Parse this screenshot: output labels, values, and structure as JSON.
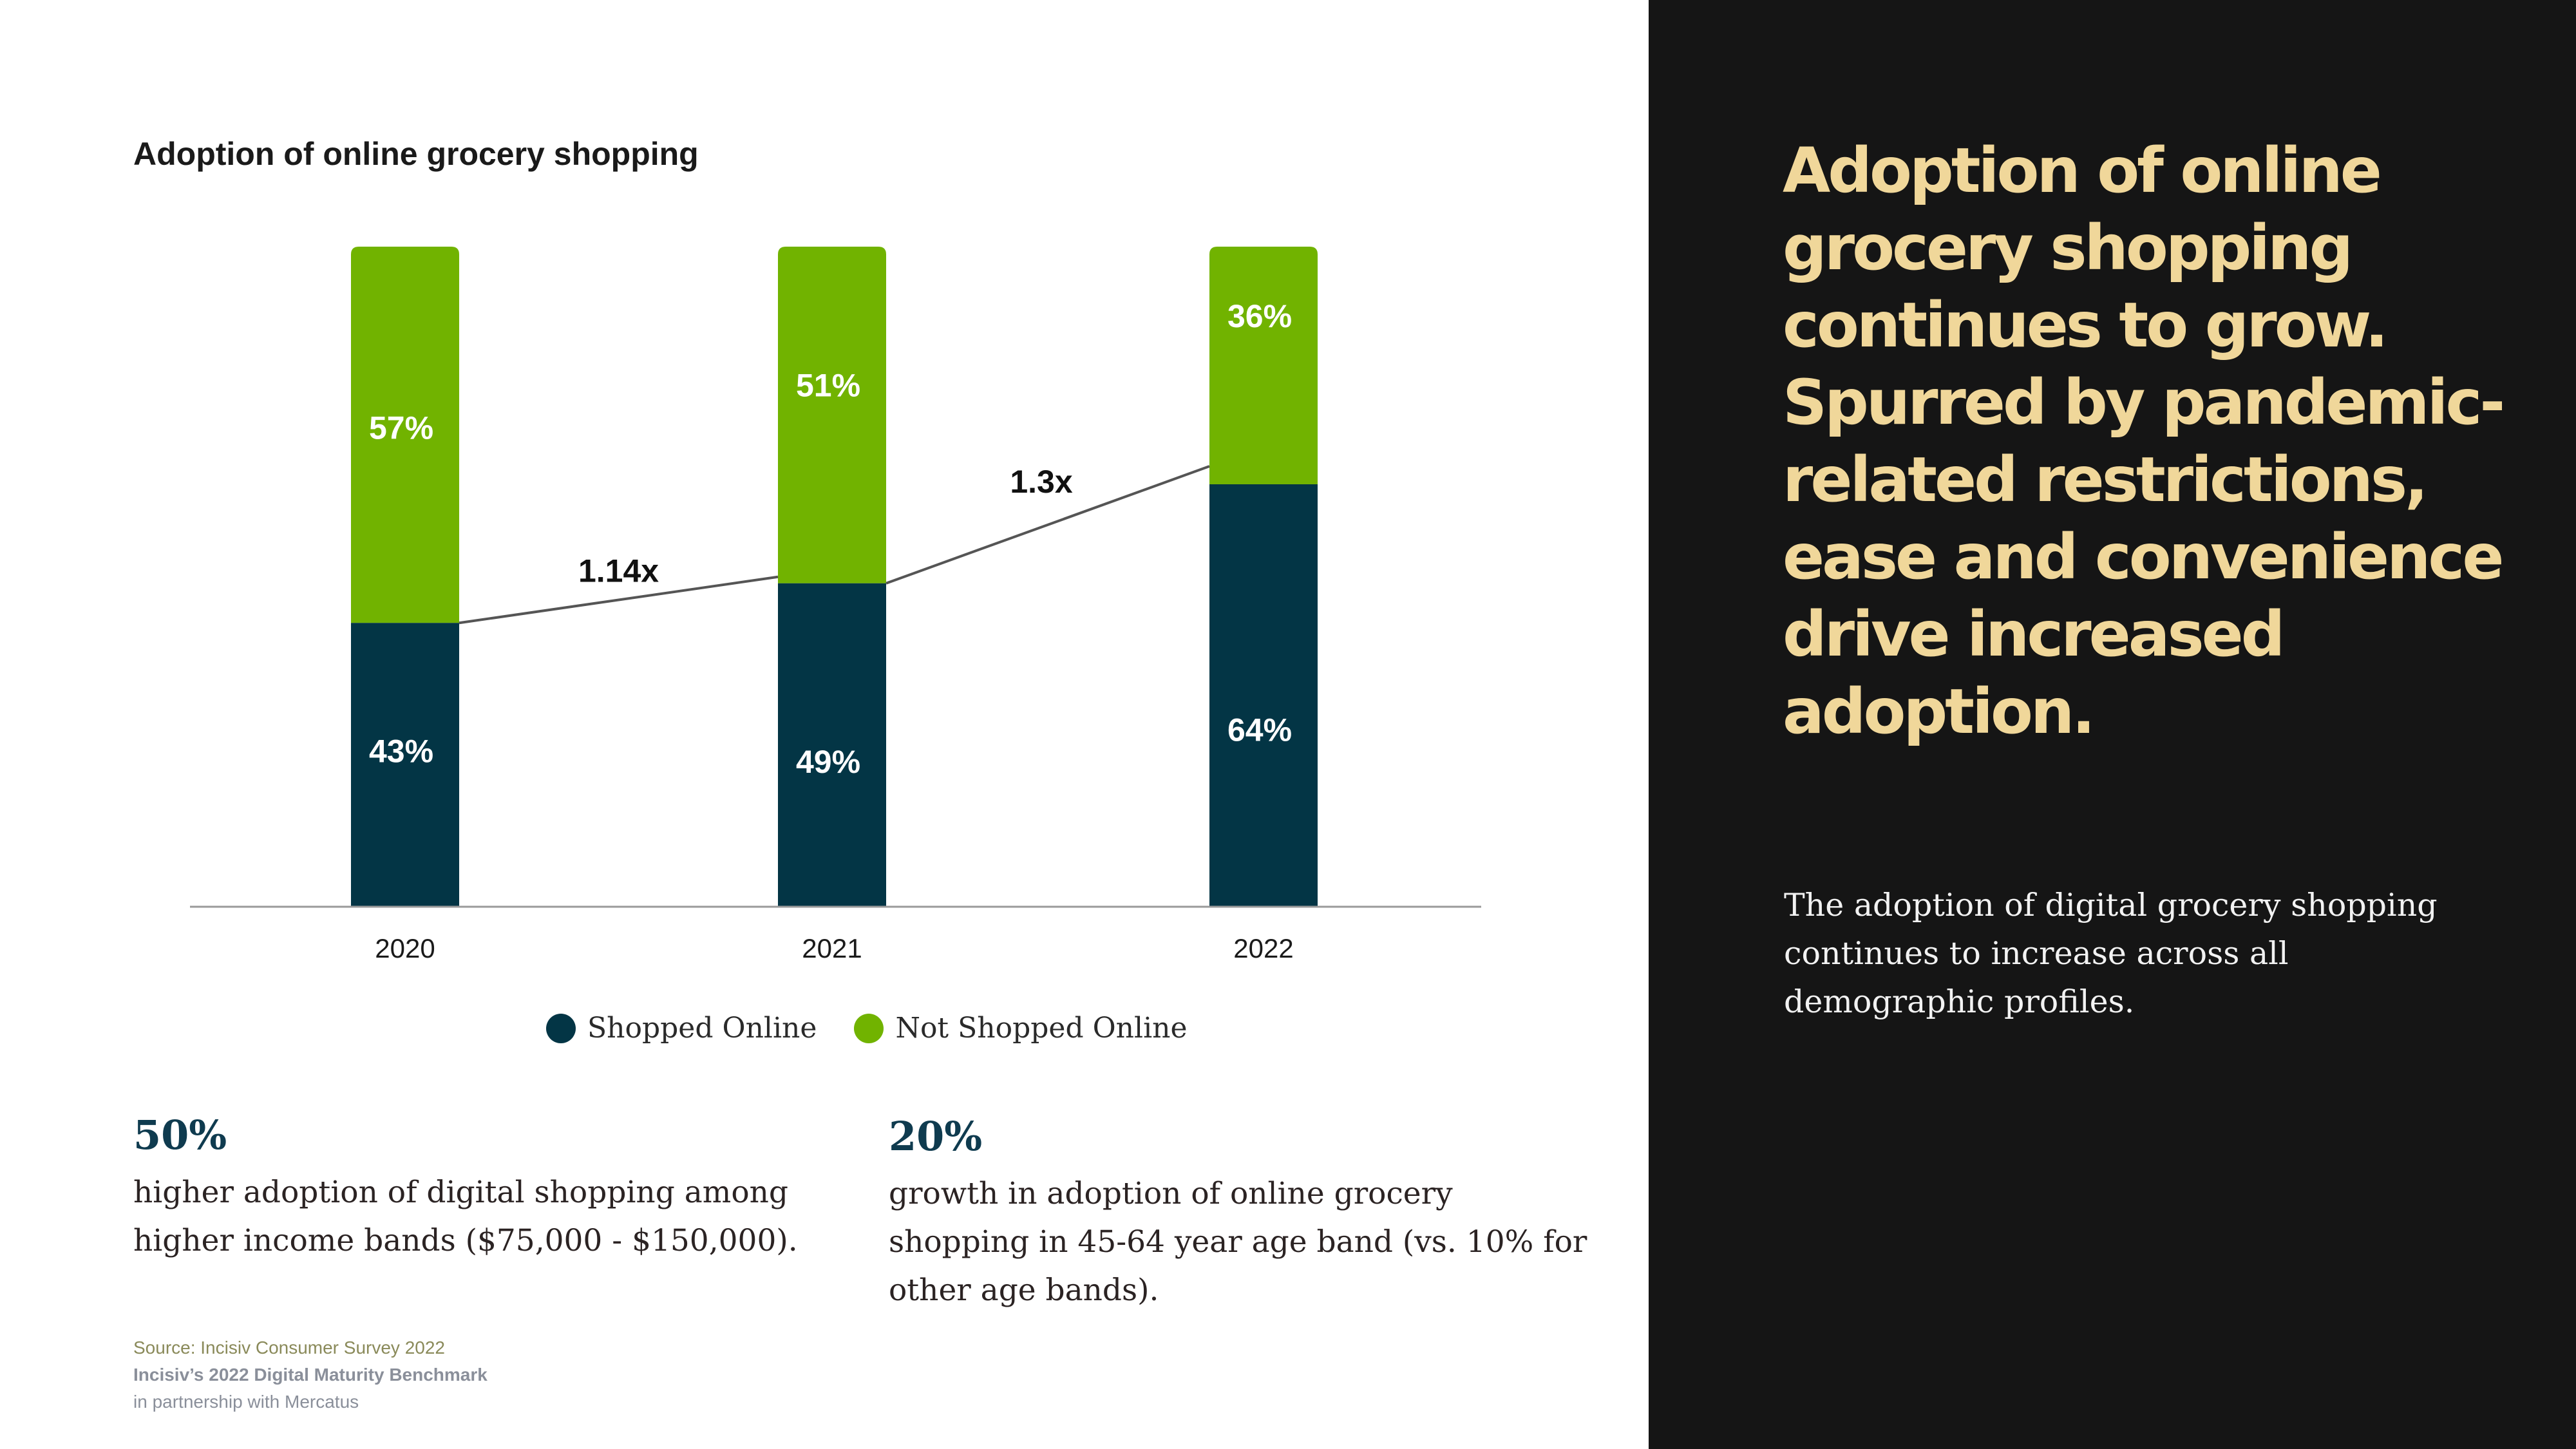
{
  "chart_data": {
    "type": "bar",
    "stacked": true,
    "title": "Adoption of online grocery shopping",
    "categories": [
      "2020",
      "2021",
      "2022"
    ],
    "series": [
      {
        "name": "Shopped Online",
        "color": "#033545",
        "values": [
          43,
          49,
          64
        ],
        "labels": [
          "43%",
          "49%",
          "64%"
        ]
      },
      {
        "name": "Not Shopped Online",
        "color": "#71b300",
        "values": [
          57,
          51,
          36
        ],
        "labels": [
          "57%",
          "51%",
          "36%"
        ]
      }
    ],
    "ylim": [
      0,
      100
    ],
    "grid": false,
    "legend_position": "bottom-center",
    "annotations": [
      {
        "text": "1.14x",
        "from": "2020",
        "to": "2021"
      },
      {
        "text": "1.3x",
        "from": "2021",
        "to": "2022"
      }
    ]
  },
  "stats": [
    {
      "value": "50%",
      "text": "higher adoption of digital shopping among higher income bands ($75,000 - $150,000)."
    },
    {
      "value": "20%",
      "text": "growth in adoption of online grocery shopping in 45-64 year age band (vs. 10% for other age bands)."
    }
  ],
  "footer": {
    "source": "Source: Incisiv Consumer Survey 2022",
    "benchmark": "Incisiv’s 2022 Digital Maturity Benchmark",
    "partner": "in partnership with Mercatus"
  },
  "panel": {
    "headline": "Adoption of online grocery shopping continues to grow. Spurred by pandemic-related restrictions, ease and convenience drive increased adoption.",
    "body": "The adoption of digital grocery shopping continues to increase across all demographic profiles."
  },
  "colors": {
    "shopped": "#033545",
    "not_shopped": "#71b300",
    "panel_bg": "#151515",
    "headline": "#f0d79a"
  }
}
